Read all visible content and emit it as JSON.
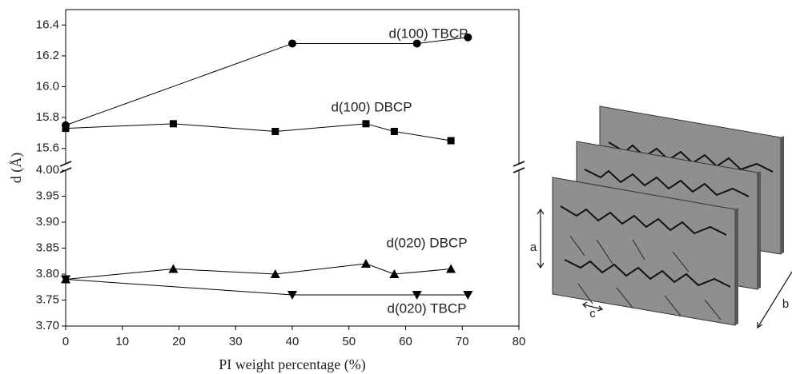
{
  "chart_data": [
    {
      "type": "line",
      "ylabel": "d (Å)",
      "xlim": [
        0,
        80
      ],
      "ylim": [
        15.5,
        16.5
      ],
      "yticks": [
        15.6,
        15.8,
        {
          "value": 16.0,
          "label": "16.0"
        },
        16.2,
        16.4
      ],
      "series": [
        {
          "name": "d(100) TBCP",
          "color": "#000000",
          "marker": "circle",
          "x": [
            0,
            40,
            62,
            71
          ],
          "values": [
            15.75,
            16.28,
            16.28,
            16.32
          ]
        },
        {
          "name": "d(100) DBCP",
          "color": "#000000",
          "marker": "square",
          "x": [
            0,
            19,
            37,
            53,
            58,
            68
          ],
          "values": [
            15.73,
            15.76,
            15.71,
            15.76,
            15.71,
            15.65
          ]
        }
      ]
    },
    {
      "type": "line",
      "xlabel": "PI weight percentage (%)",
      "xlim": [
        0,
        80
      ],
      "xticks": [
        0,
        10,
        20,
        30,
        40,
        50,
        60,
        70,
        80
      ],
      "ylim": [
        3.7,
        4.0
      ],
      "yticks": [
        {
          "value": 3.7,
          "label": "3.70"
        },
        {
          "value": 3.75,
          "label": "3.75"
        },
        {
          "value": 3.8,
          "label": "3.80"
        },
        {
          "value": 3.85,
          "label": "3.85"
        },
        {
          "value": 3.9,
          "label": "3.90"
        },
        {
          "value": 3.95,
          "label": "3.95"
        },
        {
          "value": 4.0,
          "label": "4.00"
        }
      ],
      "series": [
        {
          "name": "d(020) DBCP",
          "color": "#000000",
          "marker": "triangle-up",
          "x": [
            0,
            19,
            37,
            53,
            58,
            68
          ],
          "values": [
            3.79,
            3.81,
            3.8,
            3.82,
            3.8,
            3.81
          ]
        },
        {
          "name": "d(020) TBCP",
          "color": "#000000",
          "marker": "triangle-down",
          "x": [
            0,
            40,
            62,
            71
          ],
          "values": [
            3.79,
            3.76,
            3.76,
            3.76
          ]
        }
      ]
    }
  ],
  "schematic": {
    "labels": [
      "a",
      "b",
      "c"
    ]
  }
}
